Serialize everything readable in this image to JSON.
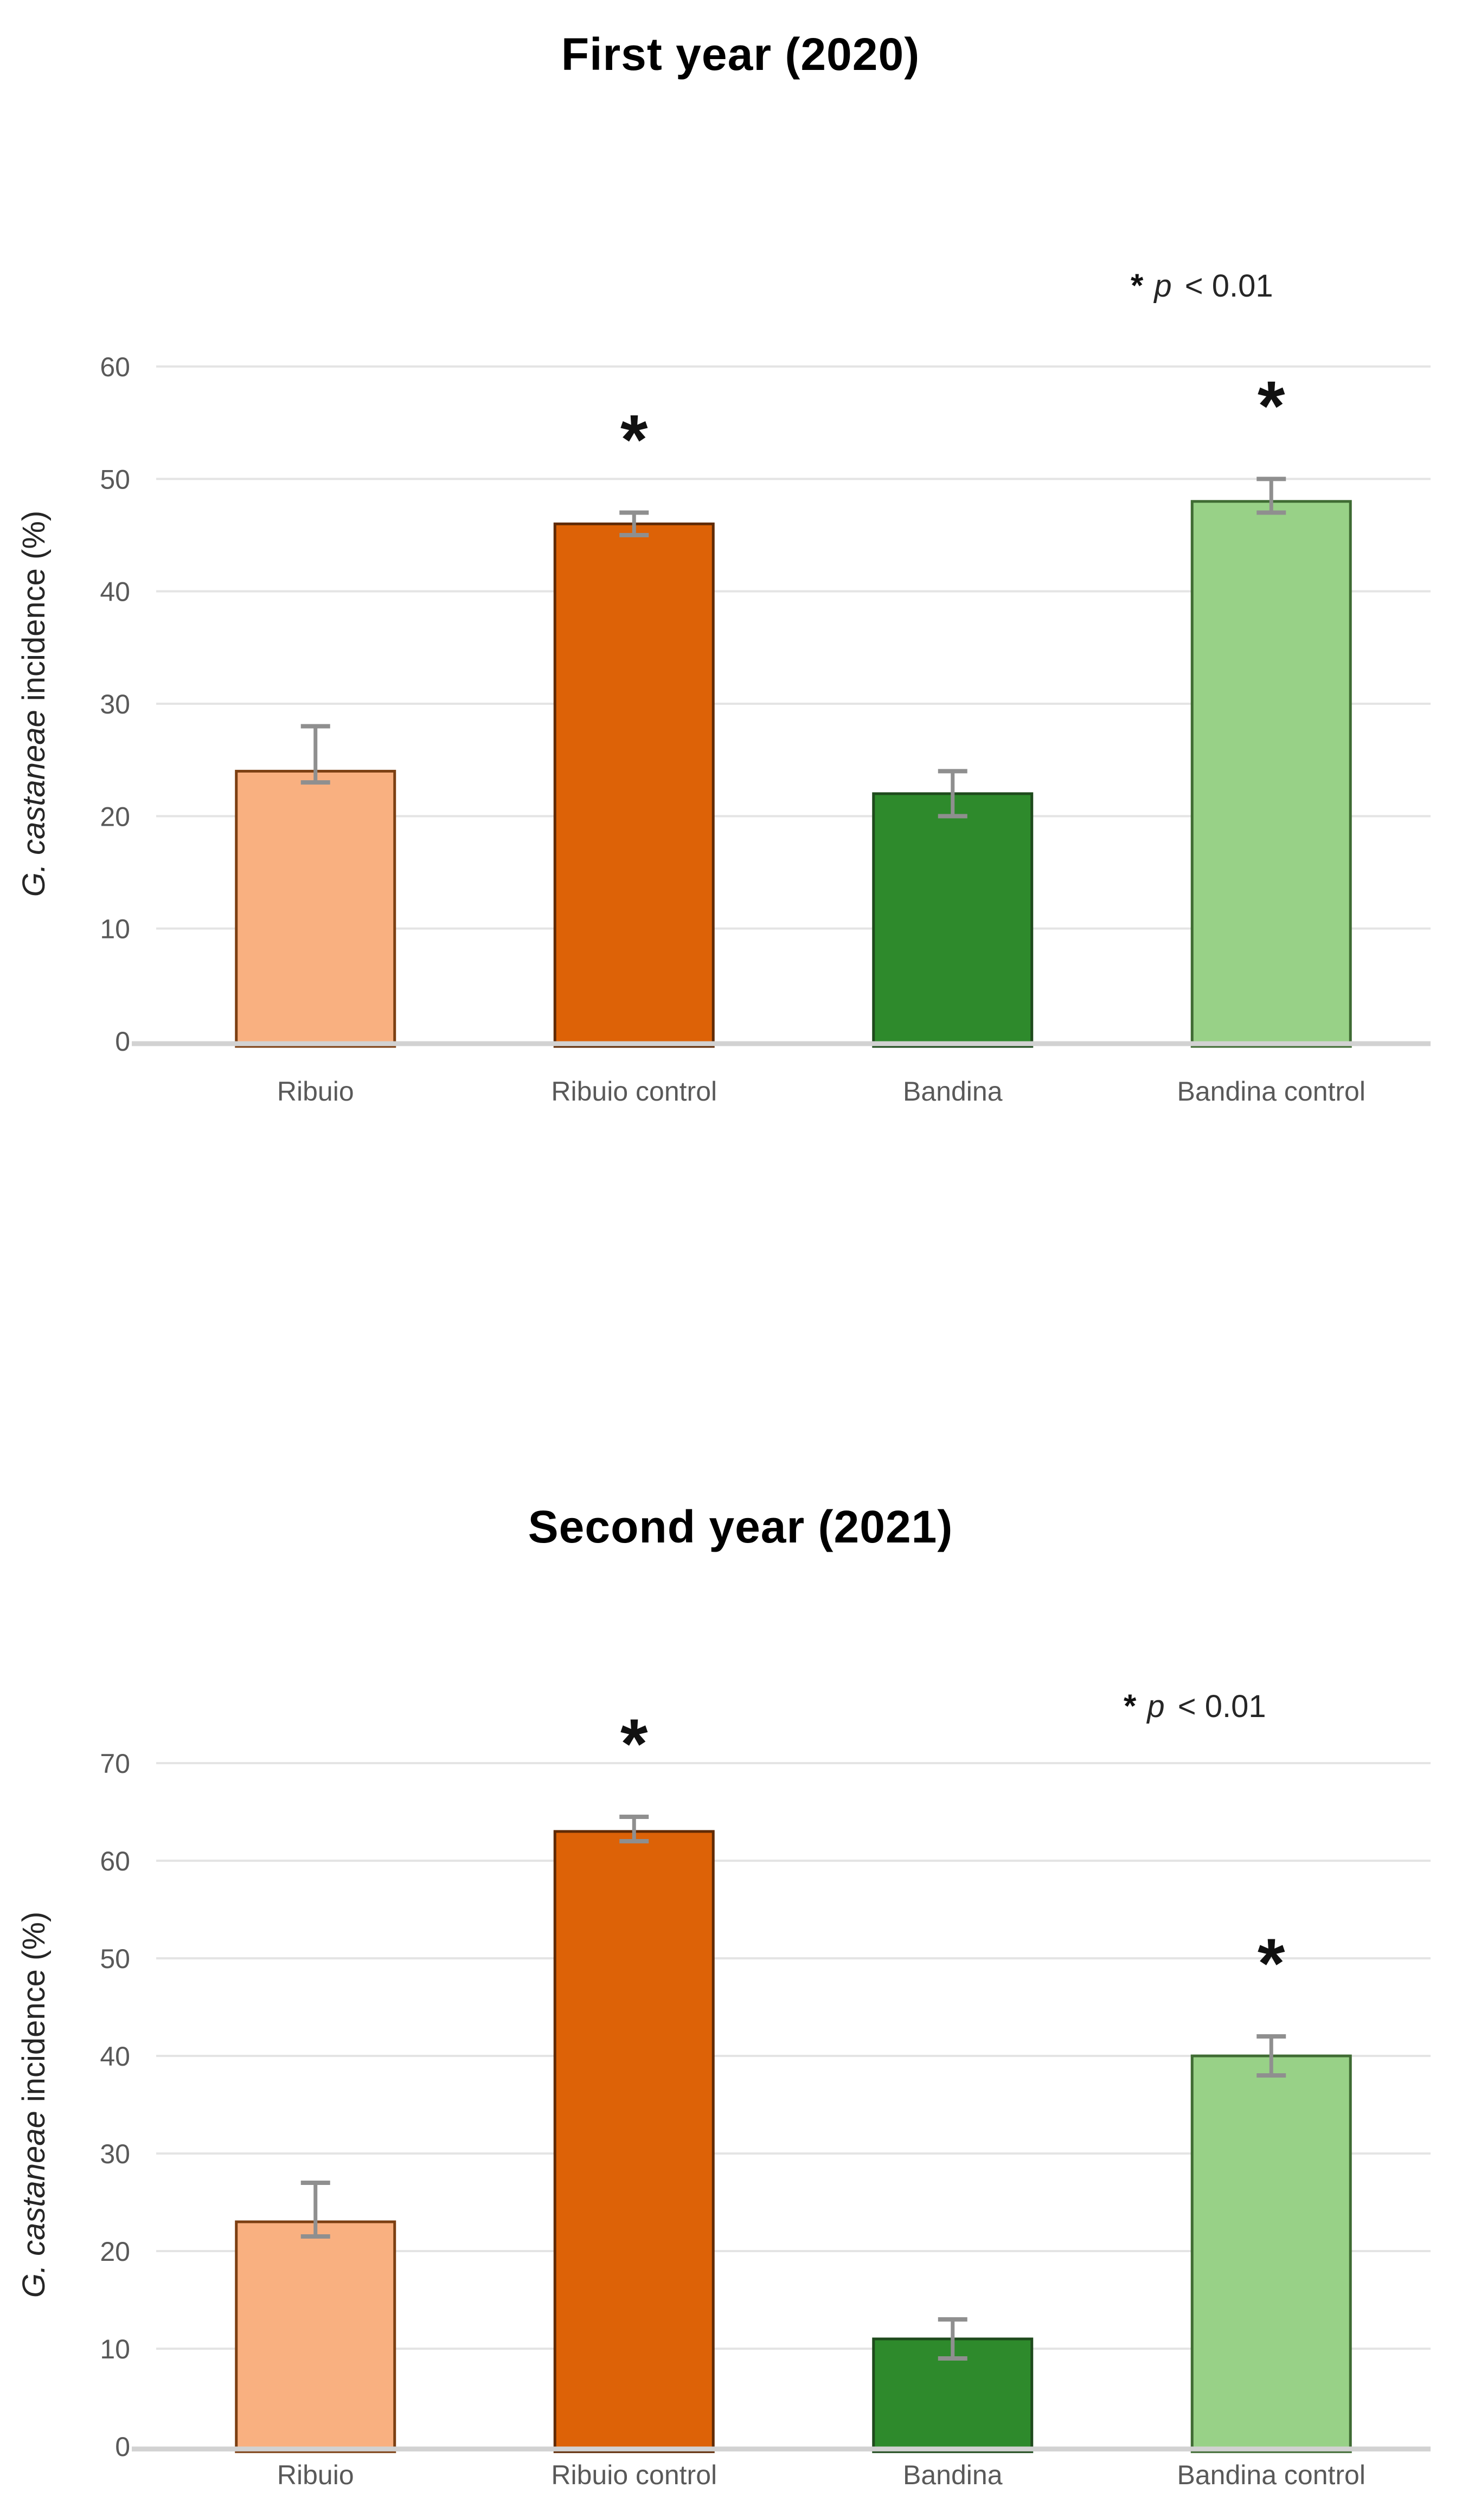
{
  "figure": {
    "background": "#ffffff"
  },
  "chart_data": [
    {
      "type": "bar",
      "title": "First year (2020)",
      "ylabel_italic": "G. castaneae",
      "ylabel_rest": " incidence (%)",
      "xlabel": "",
      "ylim": [
        0,
        60
      ],
      "ytick_step": 10,
      "ytick_labels": [
        "0",
        "10",
        "20",
        "30",
        "40",
        "50",
        "60"
      ],
      "categories": [
        "Ribuio",
        "Ribuio control",
        "Bandina",
        "Bandina control"
      ],
      "values": [
        24,
        46,
        22,
        48
      ],
      "err_up": [
        4,
        1,
        2,
        2
      ],
      "err_down": [
        1,
        1,
        2,
        1
      ],
      "significant": [
        false,
        true,
        false,
        true
      ],
      "sig_marker": "*",
      "sig_note": {
        "star": "*",
        "p": "p",
        "rest": " < 0.01"
      },
      "bar_colors": [
        "#F9B080",
        "#DD6207",
        "#2E8A2C",
        "#98D187"
      ],
      "bar_borders": [
        "#7C3F12",
        "#5F2A05",
        "#1E4A1C",
        "#3F6B33"
      ],
      "grid": true,
      "legend": "none"
    },
    {
      "type": "bar",
      "title": "Second year (2021)",
      "ylabel_italic": "G. castaneae",
      "ylabel_rest": " incidence (%)",
      "xlabel": "",
      "ylim": [
        0,
        70
      ],
      "ytick_step": 10,
      "ytick_labels": [
        "0",
        "10",
        "20",
        "30",
        "40",
        "50",
        "60",
        "70"
      ],
      "categories": [
        "Ribuio",
        "Ribuio control",
        "Bandina",
        "Bandina control"
      ],
      "values": [
        23,
        63,
        11,
        40
      ],
      "err_up": [
        4,
        1.5,
        2,
        2
      ],
      "err_down": [
        1.5,
        1,
        2,
        2
      ],
      "significant": [
        false,
        true,
        false,
        true
      ],
      "sig_marker": "*",
      "sig_note": {
        "star": "*",
        "p": "p",
        "rest": " < 0.01"
      },
      "bar_colors": [
        "#F9B080",
        "#DD6207",
        "#2E8A2C",
        "#98D187"
      ],
      "bar_borders": [
        "#7C3F12",
        "#5F2A05",
        "#1E4A1C",
        "#3F6B33"
      ],
      "grid": true,
      "legend": "none"
    }
  ],
  "style": {
    "grid_color": "#E4E4E4",
    "axis_color": "#D2D2D2",
    "error_color": "#8F8F8F",
    "tick_color": "#595959",
    "category_color": "#595959",
    "title_color": "#000000",
    "note_color": "#262626",
    "star_color": "#111111",
    "ylabel_color": "#262626"
  }
}
